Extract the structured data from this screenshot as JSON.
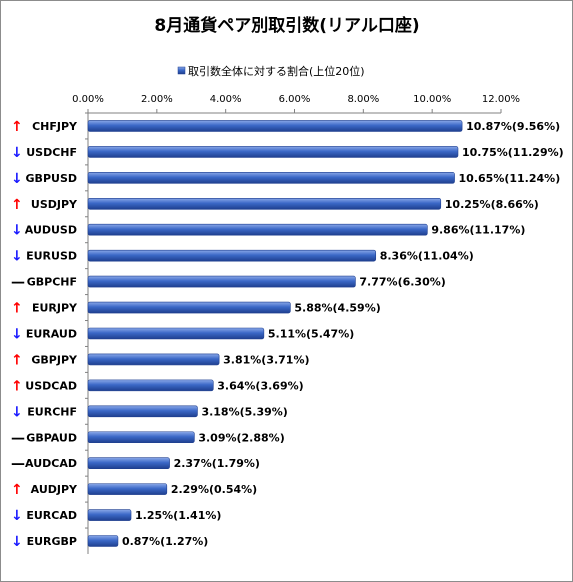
{
  "chart_data": {
    "type": "bar",
    "orientation": "horizontal",
    "title": "8月通貨ペア別取引数(リアル口座)",
    "legend": {
      "label": "取引数全体に対する割合(上位20位)",
      "position": "top"
    },
    "colors": {
      "bar": "#3b68c7",
      "bar_dark": "#1f3f8f",
      "bar_light": "#8aa8e8",
      "up": "#ff0000",
      "down": "#1a1aff",
      "flat": "#000000"
    },
    "xlim": [
      0,
      12
    ],
    "x_ticks": [
      {
        "value": 0,
        "label": "0.00%"
      },
      {
        "value": 2,
        "label": "2.00%"
      },
      {
        "value": 4,
        "label": "4.00%"
      },
      {
        "value": 6,
        "label": "6.00%"
      },
      {
        "value": 8,
        "label": "8.00%"
      },
      {
        "value": 10,
        "label": "10.00%"
      },
      {
        "value": 12,
        "label": "12.00%"
      }
    ],
    "grid": false,
    "categories": [
      "CHFJPY",
      "USDCHF",
      "GBPUSD",
      "USDJPY",
      "AUDUSD",
      "EURUSD",
      "GBPCHF",
      "EURJPY",
      "EURAUD",
      "GBPJPY",
      "USDCAD",
      "EURCHF",
      "GBPAUD",
      "AUDCAD",
      "AUDJPY",
      "EURCAD",
      "EURGBP"
    ],
    "trend_symbols": [
      "↑",
      "↓",
      "↓",
      "↑",
      "↓",
      "↓",
      "—",
      "↑",
      "↓",
      "↑",
      "↑",
      "↓",
      "—",
      "—",
      "↑",
      "↓",
      "↓"
    ],
    "trend": [
      "up",
      "down",
      "down",
      "up",
      "down",
      "down",
      "flat",
      "up",
      "down",
      "up",
      "up",
      "down",
      "flat",
      "flat",
      "up",
      "down",
      "down"
    ],
    "values": [
      10.87,
      10.75,
      10.65,
      10.25,
      9.86,
      8.36,
      7.77,
      5.88,
      5.11,
      3.81,
      3.64,
      3.18,
      3.09,
      2.37,
      2.29,
      1.25,
      0.87
    ],
    "data_labels": [
      "10.87%(9.56%)",
      "10.75%(11.29%)",
      "10.65%(11.24%)",
      "10.25%(8.66%)",
      "9.86%(11.17%)",
      "8.36%(11.04%)",
      "7.77%(6.30%)",
      "5.88%(4.59%)",
      "5.11%(5.47%)",
      "3.81%(3.71%)",
      "3.64%(3.69%)",
      "3.18%(5.39%)",
      "3.09%(2.88%)",
      "2.37%(1.79%)",
      "2.29%(0.54%)",
      "1.25%(1.41%)",
      "0.87%(1.27%)"
    ]
  }
}
